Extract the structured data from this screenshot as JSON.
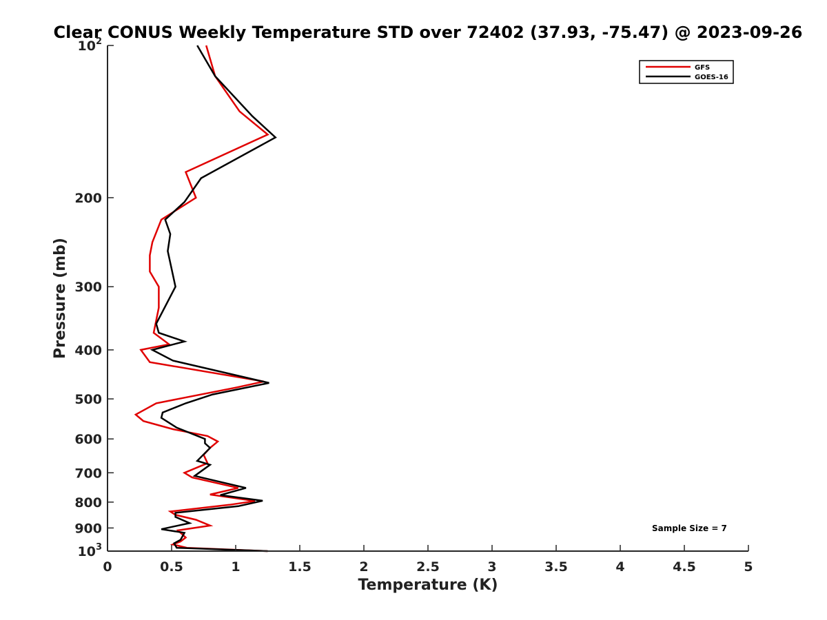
{
  "chart_data": {
    "type": "line",
    "title": "Clear CONUS Weekly Temperature STD over 72402 (37.93, -75.47) @ 2023-09-26",
    "xlabel": "Temperature (K)",
    "ylabel": "Pressure (mb)",
    "xlim": [
      0,
      5
    ],
    "ylim": [
      100,
      1000
    ],
    "y_scale": "log",
    "y_reversed": true,
    "x_ticks": [
      "0",
      "0.5",
      "1",
      "1.5",
      "2",
      "2.5",
      "3",
      "3.5",
      "4",
      "4.5",
      "5"
    ],
    "y_ticks": [
      {
        "value": 100,
        "base": "10",
        "exp": "2"
      },
      {
        "value": 200,
        "label": "200"
      },
      {
        "value": 300,
        "label": "300"
      },
      {
        "value": 400,
        "label": "400"
      },
      {
        "value": 500,
        "label": "500"
      },
      {
        "value": 600,
        "label": "600"
      },
      {
        "value": 700,
        "label": "700"
      },
      {
        "value": 800,
        "label": "800"
      },
      {
        "value": 900,
        "label": "900"
      },
      {
        "value": 1000,
        "base": "10",
        "exp": "3"
      }
    ],
    "grid": false,
    "legend_position": "top-right",
    "annotation": "Sample Size = 7",
    "series": [
      {
        "name": "GFS",
        "color": "#e00000",
        "points": [
          [
            0.77,
            100
          ],
          [
            0.84,
            115
          ],
          [
            1.03,
            135
          ],
          [
            1.25,
            150
          ],
          [
            0.61,
            178
          ],
          [
            0.69,
            200
          ],
          [
            0.42,
            221
          ],
          [
            0.35,
            245
          ],
          [
            0.33,
            260
          ],
          [
            0.33,
            280
          ],
          [
            0.4,
            300
          ],
          [
            0.4,
            330
          ],
          [
            0.36,
            370
          ],
          [
            0.48,
            390
          ],
          [
            0.26,
            400
          ],
          [
            0.33,
            423
          ],
          [
            1.22,
            462
          ],
          [
            1.0,
            475
          ],
          [
            0.38,
            510
          ],
          [
            0.22,
            537
          ],
          [
            0.28,
            553
          ],
          [
            0.51,
            574
          ],
          [
            0.78,
            592
          ],
          [
            0.86,
            607
          ],
          [
            0.8,
            625
          ],
          [
            0.75,
            645
          ],
          [
            0.78,
            670
          ],
          [
            0.6,
            700
          ],
          [
            0.66,
            715
          ],
          [
            1.02,
            750
          ],
          [
            0.8,
            773
          ],
          [
            1.15,
            796
          ],
          [
            0.95,
            810
          ],
          [
            0.49,
            835
          ],
          [
            0.53,
            848
          ],
          [
            0.69,
            867
          ],
          [
            0.8,
            890
          ],
          [
            0.55,
            910
          ],
          [
            0.61,
            940
          ],
          [
            0.57,
            957
          ],
          [
            0.51,
            970
          ],
          [
            0.62,
            985
          ],
          [
            1.25,
            1000
          ]
        ]
      },
      {
        "name": "GOES-16",
        "color": "#000000",
        "points": [
          [
            0.7,
            100
          ],
          [
            0.84,
            115
          ],
          [
            1.13,
            138
          ],
          [
            1.31,
            152
          ],
          [
            0.73,
            183
          ],
          [
            0.6,
            204
          ],
          [
            0.45,
            221
          ],
          [
            0.49,
            236
          ],
          [
            0.47,
            255
          ],
          [
            0.53,
            300
          ],
          [
            0.38,
            355
          ],
          [
            0.4,
            370
          ],
          [
            0.6,
            385
          ],
          [
            0.35,
            400
          ],
          [
            0.51,
            420
          ],
          [
            1.02,
            450
          ],
          [
            1.26,
            465
          ],
          [
            0.82,
            490
          ],
          [
            0.61,
            510
          ],
          [
            0.43,
            532
          ],
          [
            0.42,
            545
          ],
          [
            0.54,
            570
          ],
          [
            0.76,
            600
          ],
          [
            0.76,
            612
          ],
          [
            0.8,
            625
          ],
          [
            0.7,
            663
          ],
          [
            0.8,
            675
          ],
          [
            0.68,
            710
          ],
          [
            1.08,
            750
          ],
          [
            0.88,
            775
          ],
          [
            1.21,
            795
          ],
          [
            1.02,
            815
          ],
          [
            0.53,
            840
          ],
          [
            0.53,
            856
          ],
          [
            0.64,
            880
          ],
          [
            0.42,
            905
          ],
          [
            0.6,
            920
          ],
          [
            0.57,
            950
          ],
          [
            0.52,
            965
          ],
          [
            0.54,
            985
          ],
          [
            1.25,
            1000
          ]
        ]
      }
    ]
  }
}
